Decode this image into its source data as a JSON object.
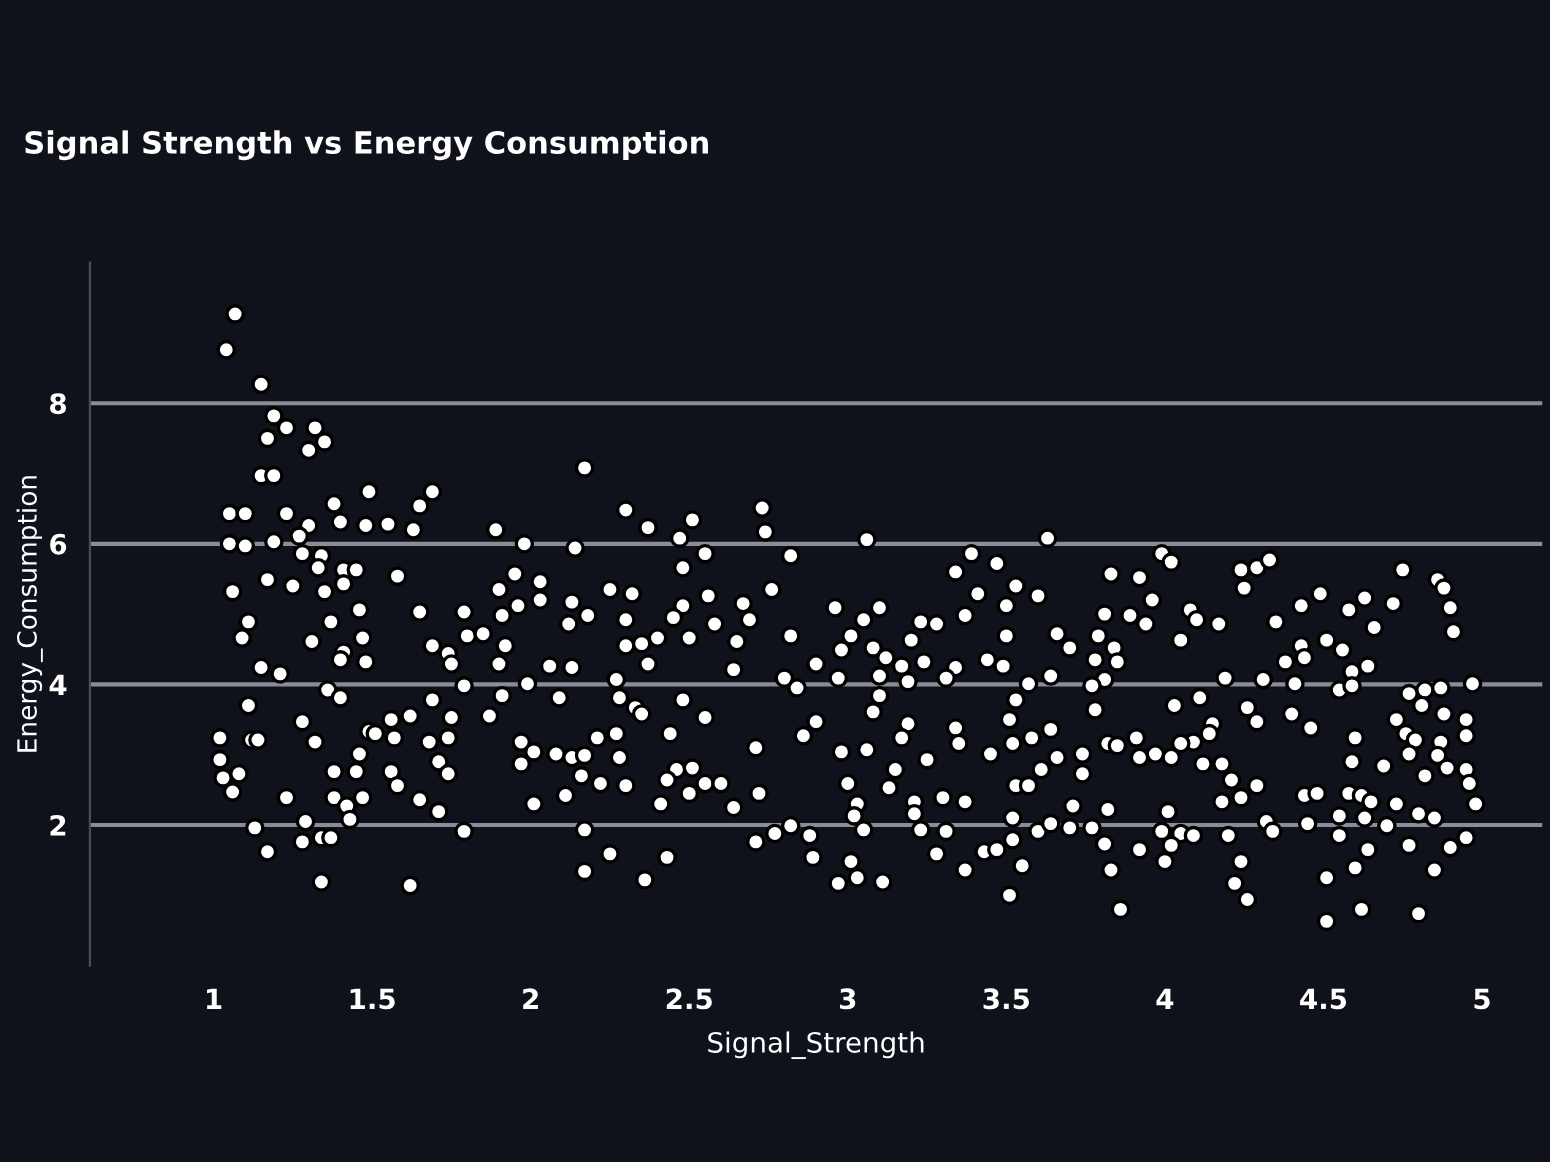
{
  "chart_data": {
    "type": "scatter",
    "title": "Signal Strength vs Energy Consumption",
    "xlabel": "Signal_Strength",
    "ylabel": "Energy_Consumption",
    "xlim": [
      0.61,
      5.19
    ],
    "ylim": [
      0,
      10
    ],
    "xticks": [
      1,
      1.5,
      2,
      2.5,
      3,
      3.5,
      4,
      4.5,
      5
    ],
    "yticks": [
      2,
      4,
      6,
      8
    ],
    "grid": "y",
    "marker": "circle",
    "series": [
      {
        "color": "#ffffff",
        "x": [
          1.068,
          1.04,
          1.15,
          1.19,
          1.23,
          1.32,
          1.35,
          1.17,
          1.3,
          1.15,
          1.19,
          2.17,
          1.49,
          1.69,
          1.65,
          1.38,
          1.05,
          1.1,
          1.23,
          2.3,
          1.3,
          1.4,
          1.48,
          1.55,
          1.63,
          1.89,
          2.37,
          1.05,
          1.1,
          1.19,
          1.27,
          1.98,
          2.14,
          1.28,
          1.34,
          1.17,
          1.25,
          1.33,
          1.41,
          1.45,
          1.58,
          1.35,
          1.41,
          1.95,
          1.9,
          2.03,
          2.03,
          1.96,
          2.13,
          2.18,
          2.25,
          2.32,
          1.06,
          1.46,
          1.65,
          1.79,
          1.11,
          1.37,
          1.91,
          1.09,
          1.31,
          1.47,
          1.8,
          1.85,
          2.12,
          2.3,
          1.69,
          1.92,
          1.41,
          1.74,
          2.3,
          2.35,
          1.48,
          1.4,
          1.75,
          1.9,
          2.06,
          2.13,
          2.37,
          1.15,
          1.21,
          1.79,
          1.99,
          1.36,
          1.4,
          1.91,
          2.09,
          2.27,
          2.28,
          1.11,
          1.69,
          2.33,
          2.35,
          1.28,
          1.62,
          1.75,
          1.87,
          1.56,
          1.49,
          1.51,
          1.02,
          1.12,
          1.14,
          1.32,
          1.57,
          1.68,
          1.74,
          1.97,
          2.21,
          2.27,
          1.02,
          1.46,
          2.01,
          2.08,
          2.13,
          2.17,
          2.28,
          1.03,
          1.08,
          1.38,
          1.45,
          1.56,
          1.71,
          1.74,
          1.97,
          2.16,
          2.22,
          2.3,
          1.06,
          1.58,
          1.23,
          1.38,
          1.42,
          1.47,
          1.65,
          1.71,
          2.01,
          2.11,
          1.43,
          1.13,
          1.29,
          1.79,
          2.17,
          1.28,
          1.34,
          1.37,
          1.17,
          2.25,
          2.17,
          1.34,
          1.62,
          2.36,
          2.51,
          2.47,
          2.73,
          2.74,
          2.55,
          2.82,
          3.06,
          3.63,
          2.48,
          3.39,
          3.47,
          3.34,
          2.56,
          2.76,
          3.53,
          3.6,
          3.41,
          2.48,
          2.67,
          2.96,
          3.1,
          3.5,
          2.45,
          2.58,
          2.69,
          3.05,
          3.23,
          3.28,
          3.37,
          2.4,
          2.5,
          2.82,
          3.01,
          3.2,
          3.5,
          3.66,
          2.65,
          2.98,
          3.08,
          3.7,
          2.64,
          2.9,
          3.12,
          3.17,
          3.24,
          3.34,
          3.44,
          3.49,
          2.8,
          2.97,
          3.1,
          3.19,
          3.31,
          3.64,
          2.84,
          2.48,
          3.57,
          3.53,
          3.1,
          2.55,
          3.08,
          3.19,
          3.34,
          3.51,
          3.64,
          2.44,
          2.9,
          2.86,
          3.17,
          3.58,
          2.71,
          2.98,
          3.06,
          3.25,
          3.35,
          3.45,
          3.52,
          3.66,
          3.74,
          2.46,
          2.51,
          3.15,
          3.61,
          2.43,
          2.55,
          2.6,
          3.0,
          3.13,
          3.53,
          3.57,
          3.74,
          2.5,
          2.72,
          2.41,
          2.64,
          3.03,
          3.21,
          3.3,
          3.37,
          3.71,
          3.02,
          3.21,
          3.52,
          2.71,
          2.77,
          2.82,
          2.88,
          3.05,
          3.23,
          3.31,
          3.6,
          3.64,
          3.7,
          3.52,
          2.89,
          3.01,
          3.28,
          3.43,
          3.47,
          3.55,
          2.43,
          2.97,
          3.03,
          3.11,
          3.37,
          3.51,
          3.99,
          4.02,
          3.83,
          3.92,
          4.24,
          4.29,
          4.33,
          4.75,
          4.86,
          4.88,
          4.25,
          3.96,
          3.81,
          3.89,
          4.08,
          4.1,
          4.43,
          4.49,
          4.63,
          4.72,
          4.9,
          3.94,
          4.17,
          4.35,
          4.58,
          4.66,
          4.91,
          3.79,
          4.05,
          4.51,
          3.84,
          4.43,
          4.56,
          3.78,
          3.85,
          4.38,
          4.44,
          4.64,
          4.59,
          3.81,
          4.19,
          4.31,
          4.41,
          4.55,
          4.59,
          4.97,
          3.77,
          4.82,
          4.87,
          4.77,
          4.11,
          3.78,
          4.03,
          4.26,
          4.4,
          4.29,
          4.46,
          4.81,
          4.73,
          4.95,
          4.88,
          4.15,
          4.76,
          4.87,
          4.95,
          3.82,
          3.85,
          3.91,
          4.09,
          4.05,
          4.14,
          4.6,
          4.79,
          3.92,
          3.97,
          4.02,
          4.12,
          4.18,
          4.59,
          4.69,
          4.77,
          4.86,
          4.95,
          4.89,
          4.21,
          4.29,
          4.82,
          4.96,
          4.44,
          4.48,
          4.58,
          4.62,
          4.18,
          4.24,
          3.82,
          4.01,
          4.65,
          4.73,
          4.98,
          4.55,
          4.63,
          4.8,
          4.85,
          4.32,
          4.45,
          4.7,
          3.77,
          3.99,
          4.05,
          4.09,
          4.2,
          4.34,
          4.55,
          4.95,
          3.81,
          4.02,
          4.77,
          4.9,
          3.92,
          4.64,
          3.83,
          4.0,
          4.24,
          4.6,
          4.85,
          4.22,
          4.26,
          4.51,
          3.86,
          4.62,
          4.8,
          4.51
        ],
        "values": [
          9.27,
          8.76,
          8.27,
          7.82,
          7.65,
          7.65,
          7.45,
          7.5,
          7.33,
          6.97,
          6.97,
          7.08,
          6.74,
          6.74,
          6.54,
          6.57,
          6.43,
          6.43,
          6.43,
          6.48,
          6.26,
          6.31,
          6.26,
          6.28,
          6.2,
          6.2,
          6.23,
          6.0,
          5.97,
          6.03,
          6.11,
          6.0,
          5.94,
          5.86,
          5.83,
          5.49,
          5.4,
          5.66,
          5.63,
          5.63,
          5.54,
          5.32,
          5.43,
          5.57,
          5.35,
          5.46,
          5.2,
          5.12,
          5.17,
          4.98,
          5.35,
          5.29,
          5.32,
          5.06,
          5.03,
          5.03,
          4.89,
          4.89,
          4.98,
          4.66,
          4.61,
          4.66,
          4.69,
          4.72,
          4.86,
          4.92,
          4.55,
          4.55,
          4.46,
          4.44,
          4.55,
          4.58,
          4.32,
          4.35,
          4.29,
          4.29,
          4.26,
          4.24,
          4.29,
          4.24,
          4.15,
          3.98,
          4.01,
          3.92,
          3.81,
          3.84,
          3.81,
          4.07,
          3.81,
          3.7,
          3.78,
          3.67,
          3.58,
          3.47,
          3.55,
          3.53,
          3.55,
          3.5,
          3.33,
          3.3,
          3.24,
          3.21,
          3.21,
          3.18,
          3.24,
          3.18,
          3.24,
          3.18,
          3.24,
          3.3,
          2.93,
          3.01,
          3.04,
          3.01,
          2.96,
          2.99,
          2.96,
          2.67,
          2.73,
          2.76,
          2.76,
          2.76,
          2.9,
          2.73,
          2.87,
          2.7,
          2.59,
          2.56,
          2.47,
          2.56,
          2.39,
          2.39,
          2.27,
          2.39,
          2.36,
          2.19,
          2.3,
          2.42,
          2.08,
          1.96,
          2.05,
          1.91,
          1.93,
          1.76,
          1.82,
          1.82,
          1.62,
          1.59,
          1.34,
          1.19,
          1.14,
          1.22,
          6.34,
          6.08,
          6.51,
          6.17,
          5.86,
          5.83,
          6.06,
          6.08,
          5.66,
          5.86,
          5.72,
          5.6,
          5.26,
          5.35,
          5.4,
          5.26,
          5.29,
          5.12,
          5.15,
          5.09,
          5.09,
          5.12,
          4.95,
          4.86,
          4.92,
          4.92,
          4.89,
          4.86,
          4.98,
          4.66,
          4.66,
          4.69,
          4.69,
          4.63,
          4.69,
          4.72,
          4.61,
          4.49,
          4.52,
          4.52,
          4.21,
          4.29,
          4.38,
          4.26,
          4.32,
          4.24,
          4.35,
          4.26,
          4.09,
          4.09,
          4.12,
          4.04,
          4.09,
          4.12,
          3.95,
          3.78,
          4.01,
          3.78,
          3.84,
          3.53,
          3.61,
          3.44,
          3.38,
          3.5,
          3.36,
          3.3,
          3.47,
          3.27,
          3.24,
          3.24,
          3.1,
          3.04,
          3.07,
          2.93,
          3.16,
          3.01,
          3.16,
          2.96,
          3.01,
          2.79,
          2.81,
          2.79,
          2.79,
          2.64,
          2.59,
          2.59,
          2.59,
          2.53,
          2.56,
          2.56,
          2.73,
          2.45,
          2.45,
          2.3,
          2.25,
          2.3,
          2.33,
          2.39,
          2.33,
          2.27,
          2.13,
          2.16,
          2.1,
          1.76,
          1.88,
          1.99,
          1.85,
          1.93,
          1.93,
          1.91,
          1.91,
          2.02,
          1.96,
          1.79,
          1.54,
          1.48,
          1.59,
          1.62,
          1.65,
          1.42,
          1.54,
          1.17,
          1.25,
          1.19,
          1.36,
          1.0,
          5.86,
          5.74,
          5.57,
          5.52,
          5.63,
          5.66,
          5.77,
          5.63,
          5.49,
          5.37,
          5.37,
          5.2,
          5.0,
          4.98,
          5.06,
          4.92,
          5.12,
          5.29,
          5.23,
          5.15,
          5.09,
          4.86,
          4.86,
          4.89,
          5.06,
          4.81,
          4.75,
          4.69,
          4.63,
          4.63,
          4.52,
          4.55,
          4.49,
          4.35,
          4.32,
          4.32,
          4.38,
          4.26,
          4.18,
          4.07,
          4.09,
          4.07,
          4.01,
          3.92,
          3.98,
          4.01,
          3.98,
          3.92,
          3.95,
          3.87,
          3.81,
          3.64,
          3.7,
          3.67,
          3.58,
          3.47,
          3.38,
          3.7,
          3.5,
          3.5,
          3.58,
          3.44,
          3.3,
          3.18,
          3.27,
          3.16,
          3.13,
          3.24,
          3.18,
          3.16,
          3.3,
          3.24,
          3.21,
          2.96,
          3.01,
          2.96,
          2.87,
          2.87,
          2.9,
          2.84,
          3.01,
          2.99,
          2.79,
          2.81,
          2.64,
          2.56,
          2.7,
          2.59,
          2.42,
          2.45,
          2.45,
          2.42,
          2.33,
          2.39,
          2.22,
          2.19,
          2.33,
          2.3,
          2.3,
          2.13,
          2.1,
          2.16,
          2.1,
          2.05,
          2.02,
          1.99,
          1.96,
          1.91,
          1.88,
          1.85,
          1.85,
          1.91,
          1.85,
          1.82,
          1.73,
          1.71,
          1.71,
          1.68,
          1.65,
          1.65,
          1.36,
          1.48,
          1.48,
          1.39,
          1.36,
          1.17,
          0.94,
          1.25,
          0.8,
          0.8,
          0.74,
          0.63
        ]
      }
    ]
  }
}
